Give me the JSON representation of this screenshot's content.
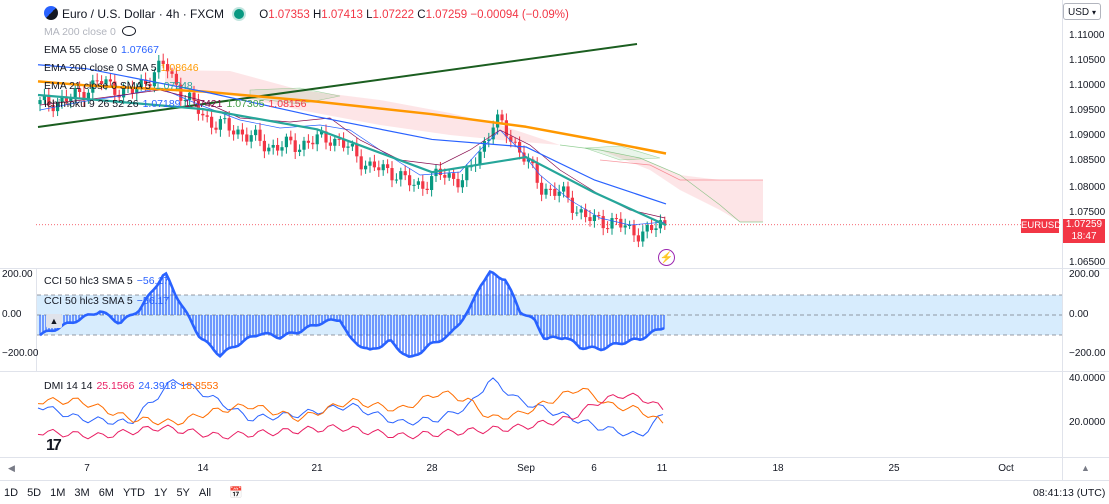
{
  "header": {
    "title": "Euro / U.S. Dollar · 4h · FXCM",
    "ohlc_o_key": "O",
    "ohlc_o": "1.07353",
    "ohlc_h_key": "H",
    "ohlc_h": "1.07413",
    "ohlc_l_key": "L",
    "ohlc_l": "1.07222",
    "ohlc_c_key": "C",
    "ohlc_c": "1.07259",
    "change": "−0.00094 (−0.09%)"
  },
  "currency_selector": "USD",
  "legends": {
    "ma200": "MA 200 close 0",
    "ema55": "EMA 55 close 0",
    "ema55_value": "1.07667",
    "ema200": "EMA 200 close 0 SMA 5",
    "ema200_value": "1.08646",
    "ema21": "EMA 21 close 0 SMA 5",
    "ema21_value": "1.07248",
    "ichimoku": "Ichimoku 9 26 52 26",
    "ichimoku_v1": "1.07189",
    "ichimoku_v2": "1.07421",
    "ichimoku_v3": "1.07305",
    "ichimoku_v4": "1.08156",
    "cci1": "CCI 50 hlc3 SMA 5",
    "cci1_value": "−56.17",
    "cci2": "CCI 50 hlc3 SMA 5",
    "cci2_value": "−56.17",
    "dmi": "DMI 14 14",
    "dmi_v1": "25.1566",
    "dmi_v2": "24.3918",
    "dmi_v3": "18.8553"
  },
  "price_axis": [
    "1.11000",
    "1.10500",
    "1.10000",
    "1.09500",
    "1.09000",
    "1.08500",
    "1.08000",
    "1.07500",
    "1.06500"
  ],
  "cci_axis_right": [
    "200.00",
    "0.00",
    "−200.00"
  ],
  "cci_axis_left": [
    "200.00",
    "0.00",
    "−200.00"
  ],
  "dmi_axis": [
    "40.0000",
    "20.0000"
  ],
  "x_axis": [
    "7",
    "14",
    "21",
    "28",
    "Sep",
    "6",
    "11",
    "18",
    "25",
    "Oct"
  ],
  "symbol_tag": "EURUSD",
  "last_price": "1.07259",
  "countdown": "18:47",
  "timeframes": [
    "1D",
    "5D",
    "1M",
    "3M",
    "6M",
    "YTD",
    "1Y",
    "5Y",
    "All"
  ],
  "clock": "08:41:13 (UTC)",
  "colors": {
    "up": "#089981",
    "down": "#f23645",
    "ema200": "#ff9800",
    "ema55": "#2962ff",
    "ema21": "#26a69a",
    "trend": "#1b5e20",
    "cci": "#2962ff",
    "dmi_plus": "#2962ff",
    "dmi_minus": "#ff6d00",
    "adx": "#e91e63"
  },
  "chart_data": {
    "type": "line",
    "title": "Euro / U.S. Dollar · 4h · FXCM",
    "xlabel": "",
    "ylabel": "",
    "ylim": [
      1.0635,
      1.113
    ],
    "x": [
      "7",
      "14",
      "21",
      "28",
      "Sep",
      "6",
      "11"
    ],
    "series": [
      {
        "name": "EMA 200 close 0 SMA 5",
        "values": [
          1.1002,
          1.099,
          1.097,
          1.0945,
          1.092,
          1.0895,
          1.0867
        ]
      },
      {
        "name": "EMA 55 close 0",
        "values": [
          1.1035,
          1.099,
          1.094,
          1.0895,
          1.088,
          1.0815,
          1.0767
        ]
      },
      {
        "name": "EMA 21 close 0 SMA 5",
        "values": [
          1.0975,
          1.0955,
          1.0915,
          1.083,
          1.086,
          1.079,
          1.0725
        ]
      }
    ],
    "last_close": 1.07259
  }
}
